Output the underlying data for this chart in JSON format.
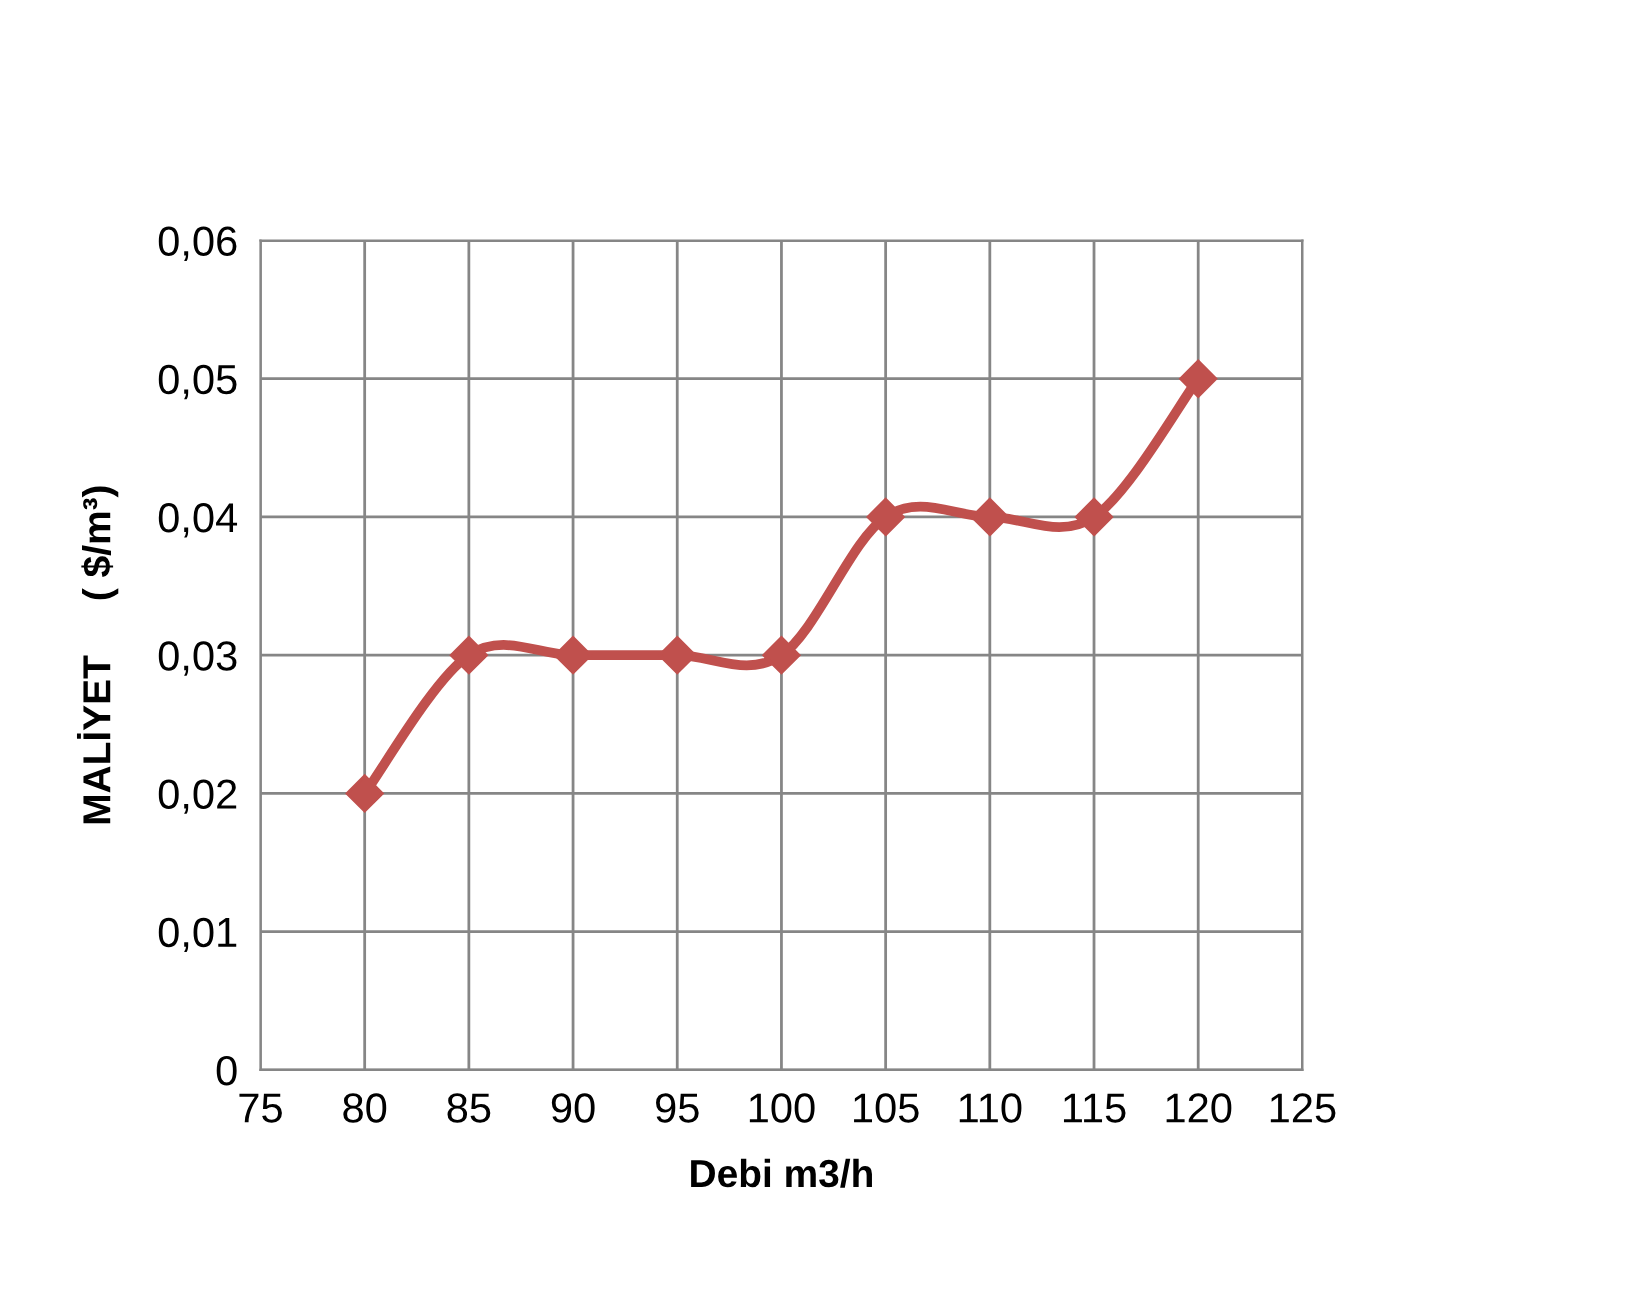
{
  "chart_data": {
    "type": "line",
    "xlabel": "Debi m3/h",
    "ylabel": "MALİYET     ( $/m³)",
    "x": [
      80,
      85,
      90,
      95,
      100,
      105,
      110,
      115,
      120
    ],
    "series": [
      {
        "color": "#c0504d",
        "values": [
          0.02,
          0.03,
          0.03,
          0.03,
          0.03,
          0.04,
          0.04,
          0.04,
          0.05
        ]
      }
    ],
    "xlim": [
      75,
      125
    ],
    "xticks": [
      75,
      80,
      85,
      90,
      95,
      100,
      105,
      110,
      115,
      120,
      125
    ],
    "ylim": [
      0,
      0.06
    ],
    "yticks": [
      0,
      {
        "value": 0.01,
        "label": "0,01"
      },
      {
        "value": 0.02,
        "label": "0,02"
      },
      {
        "value": 0.03,
        "label": "0,03"
      },
      {
        "value": 0.04,
        "label": "0,04"
      },
      {
        "value": 0.05,
        "label": "0,05"
      },
      {
        "value": 0.06,
        "label": "0,06"
      }
    ],
    "grid": true,
    "marker": "diamond",
    "line_style": "solid"
  }
}
